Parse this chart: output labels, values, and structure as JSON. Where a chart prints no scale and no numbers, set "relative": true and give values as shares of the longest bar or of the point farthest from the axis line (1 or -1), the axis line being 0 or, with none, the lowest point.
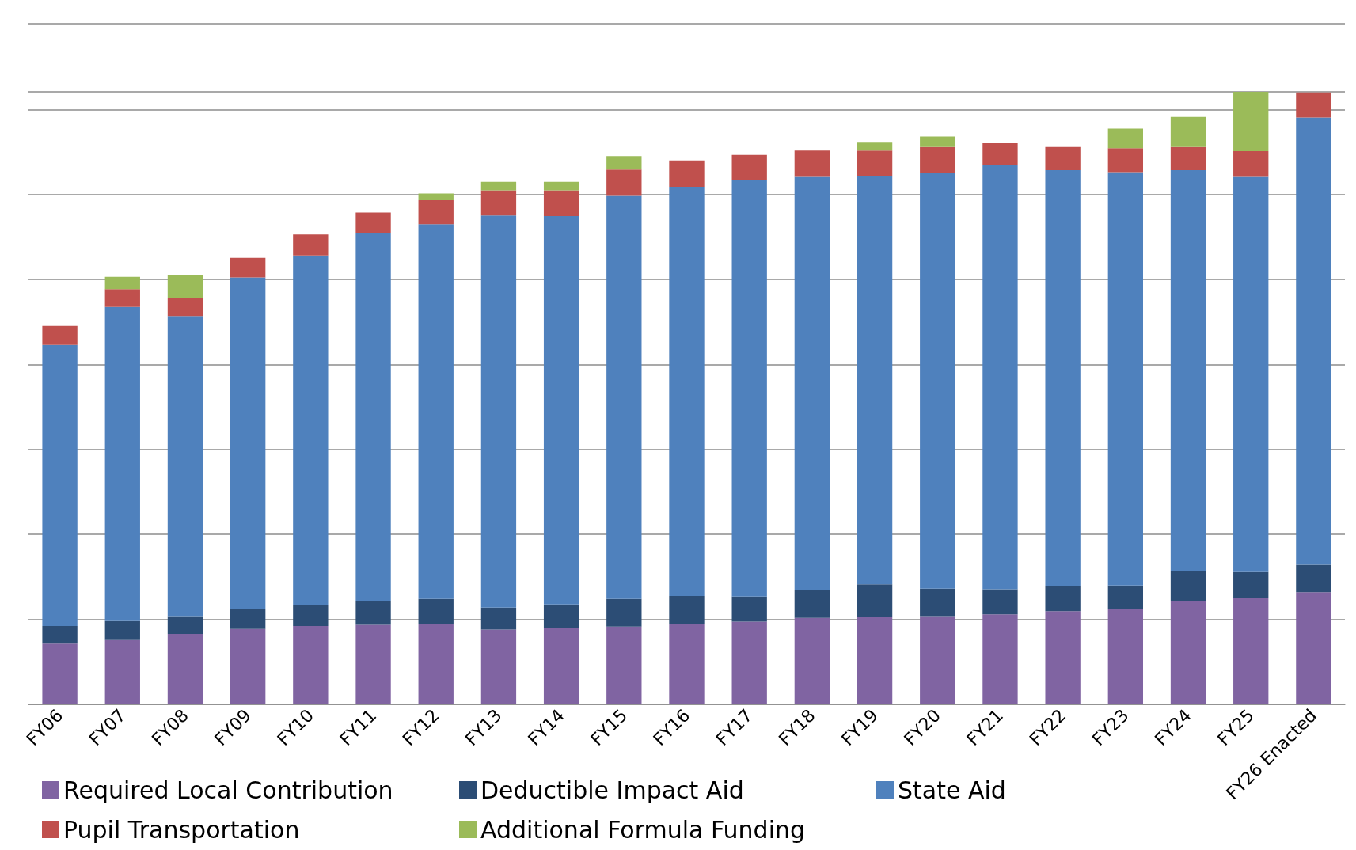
{
  "chart_data": {
    "type": "bar",
    "stacked": true,
    "relative": true,
    "grid": "y",
    "legend": "bottom",
    "categories": [
      "FY06",
      "FY07",
      "FY08",
      "FY09",
      "FY10",
      "FY11",
      "FY12",
      "FY13",
      "FY14",
      "FY15",
      "FY16",
      "FY17",
      "FY18",
      "FY19",
      "FY20",
      "FY21",
      "FY22",
      "FY23",
      "FY24",
      "FY25",
      "FY26 Enacted"
    ],
    "series": [
      {
        "name": "Required Local Contribution",
        "color": "#8064a2",
        "values": [
          0.099,
          0.105,
          0.115,
          0.123,
          0.128,
          0.13,
          0.131,
          0.122,
          0.124,
          0.127,
          0.131,
          0.135,
          0.141,
          0.142,
          0.144,
          0.147,
          0.152,
          0.155,
          0.168,
          0.173,
          0.183
        ]
      },
      {
        "name": "Deductible Impact Aid",
        "color": "#2c4d75",
        "values": [
          0.029,
          0.031,
          0.029,
          0.032,
          0.034,
          0.038,
          0.041,
          0.036,
          0.039,
          0.045,
          0.046,
          0.041,
          0.045,
          0.054,
          0.045,
          0.041,
          0.041,
          0.039,
          0.049,
          0.043,
          0.045
        ]
      },
      {
        "name": "State Aid",
        "color": "#4f81bd",
        "values": [
          0.459,
          0.513,
          0.49,
          0.542,
          0.571,
          0.601,
          0.612,
          0.64,
          0.634,
          0.658,
          0.668,
          0.68,
          0.675,
          0.666,
          0.679,
          0.693,
          0.679,
          0.675,
          0.655,
          0.645,
          0.73
        ]
      },
      {
        "name": "Pupil Transportation",
        "color": "#c0504d",
        "values": [
          0.031,
          0.029,
          0.029,
          0.032,
          0.034,
          0.034,
          0.039,
          0.041,
          0.042,
          0.043,
          0.043,
          0.041,
          0.043,
          0.042,
          0.042,
          0.035,
          0.038,
          0.039,
          0.038,
          0.042,
          0.041
        ]
      },
      {
        "name": "Additional Formula Funding",
        "color": "#9bbb59",
        "values": [
          null,
          0.02,
          0.038,
          null,
          null,
          null,
          0.011,
          0.014,
          0.014,
          0.022,
          null,
          null,
          null,
          0.013,
          0.017,
          null,
          null,
          0.032,
          0.049,
          0.097,
          null
        ]
      }
    ]
  }
}
